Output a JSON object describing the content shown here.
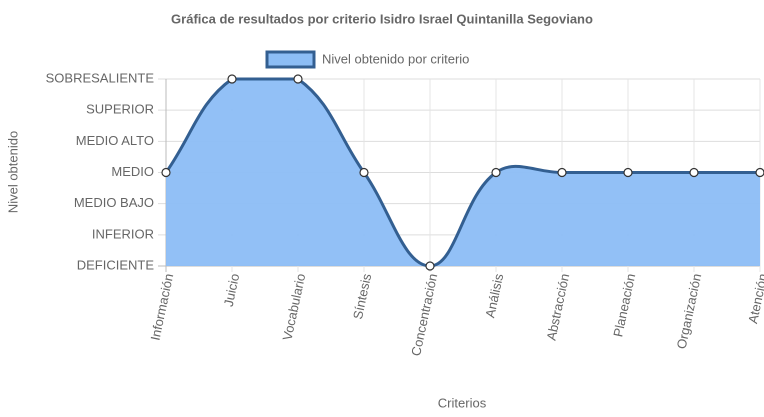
{
  "chart_data": {
    "type": "line",
    "title": "Gráfica de resultados por criterio Isidro Israel Quintanilla Segoviano",
    "x_label": "Criterios",
    "y_label": "Nivel obtenido",
    "categories": [
      "Información",
      "Juicio",
      "Vocabulario",
      "Síntesis",
      "Concentración",
      "Análisis",
      "Abstracción",
      "Planeación",
      "Organización",
      "Atención"
    ],
    "series": [
      {
        "name": "Nivel obtenido por criterio",
        "color": "#335f91",
        "fill": "#8cbdf5",
        "values": [
          3,
          6,
          6,
          3,
          0,
          3,
          3,
          3,
          3,
          3
        ]
      }
    ],
    "ylim": [
      0,
      6
    ],
    "yticks": [
      {
        "value": 0,
        "label": "DEFICIENTE"
      },
      {
        "value": 1,
        "label": "INFERIOR"
      },
      {
        "value": 2,
        "label": "MEDIO BAJO"
      },
      {
        "value": 3,
        "label": "MEDIO"
      },
      {
        "value": 4,
        "label": "MEDIO ALTO"
      },
      {
        "value": 5,
        "label": "SUPERIOR"
      },
      {
        "value": 6,
        "label": "SOBRESALIENTE"
      }
    ],
    "grid": true,
    "legend": "top"
  }
}
